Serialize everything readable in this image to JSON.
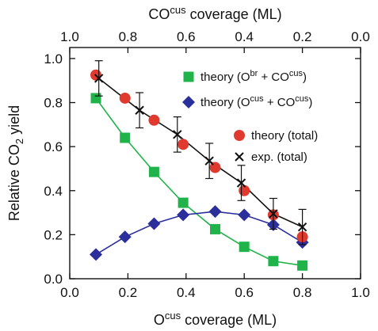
{
  "chart_data": {
    "type": "line",
    "x_axis_bottom": {
      "label_main": "O",
      "label_sup": "cus",
      "label_rest": " coverage (ML)",
      "range": [
        0.0,
        1.0
      ],
      "ticks": [
        0.0,
        0.2,
        0.4,
        0.6,
        0.8,
        1.0
      ],
      "tick_labels": [
        "0.0",
        "0.2",
        "0.4",
        "0.6",
        "0.8",
        "1.0"
      ]
    },
    "x_axis_top": {
      "label_main": "CO",
      "label_sup": "cus",
      "label_rest": " coverage (ML)",
      "note": "top axis is reversed: CO coverage = 1 − O coverage",
      "tick_labels": [
        "1.0",
        "0.8",
        "0.6",
        "0.4",
        "0.2",
        "0.0"
      ]
    },
    "y_axis": {
      "label_pre": "Relative CO",
      "label_sub": "2",
      "label_post": " yield",
      "range": [
        0.0,
        1.05
      ],
      "ticks": [
        0.0,
        0.2,
        0.4,
        0.6,
        0.8,
        1.0
      ],
      "tick_labels": [
        "0.0",
        "0.2",
        "0.4",
        "0.6",
        "0.8",
        "1.0"
      ]
    },
    "legend_placement": "top-right",
    "series": [
      {
        "key": "obr",
        "legend_pre": "theory (O",
        "legend_sup1": "br",
        "legend_mid": " + CO",
        "legend_sup2": "cus",
        "legend_post": ")",
        "marker": "square",
        "color": "#1fb34a",
        "line_color": "#1fb34a",
        "x": [
          0.09,
          0.19,
          0.29,
          0.39,
          0.5,
          0.6,
          0.7,
          0.8
        ],
        "y": [
          0.82,
          0.64,
          0.485,
          0.345,
          0.225,
          0.145,
          0.08,
          0.06
        ]
      },
      {
        "key": "ocus",
        "legend_pre": "theory (O",
        "legend_sup1": "cus",
        "legend_mid": " + CO",
        "legend_sup2": "cus",
        "legend_post": ")",
        "marker": "diamond",
        "color": "#2b2f9c",
        "line_color": "#2b2f9c",
        "x": [
          0.09,
          0.19,
          0.29,
          0.39,
          0.5,
          0.6,
          0.7,
          0.8
        ],
        "y": [
          0.11,
          0.19,
          0.25,
          0.29,
          0.305,
          0.29,
          0.245,
          0.165
        ]
      },
      {
        "key": "total",
        "legend_text": "theory (total)",
        "marker": "circle",
        "color": "#e03a2e",
        "x": [
          0.09,
          0.19,
          0.29,
          0.39,
          0.5,
          0.6,
          0.7,
          0.8
        ],
        "y": [
          0.925,
          0.82,
          0.72,
          0.61,
          0.505,
          0.4,
          0.29,
          0.19
        ]
      },
      {
        "key": "exp",
        "legend_text": "exp. (total)",
        "marker": "cross",
        "color": "#111111",
        "line_color": "#111111",
        "x": [
          0.1,
          0.24,
          0.37,
          0.48,
          0.59,
          0.7,
          0.8
        ],
        "y": [
          0.91,
          0.765,
          0.655,
          0.535,
          0.435,
          0.295,
          0.235
        ],
        "err": [
          0.08,
          0.08,
          0.08,
          0.08,
          0.08,
          0.07,
          0.08
        ]
      }
    ]
  }
}
